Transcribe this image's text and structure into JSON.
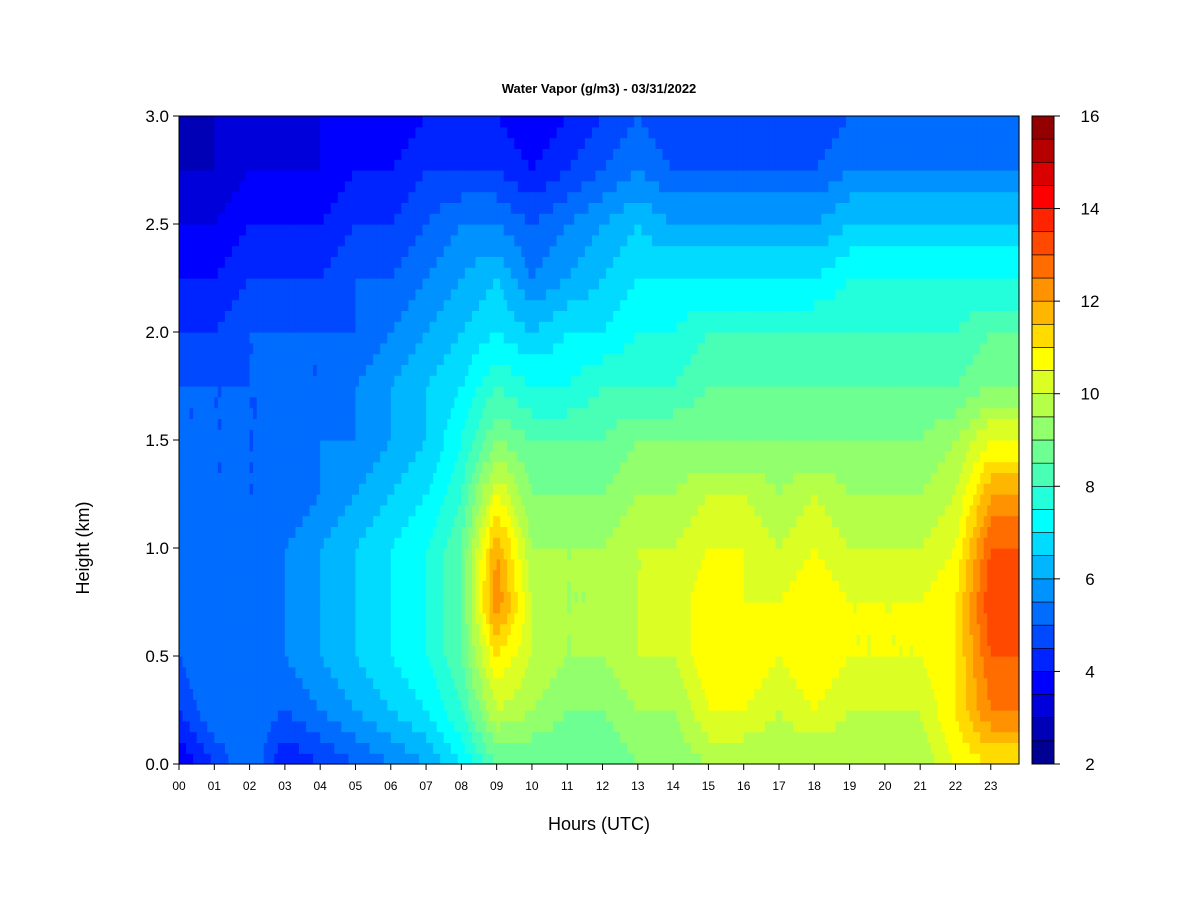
{
  "chart_data": {
    "type": "heatmap",
    "title": "Water Vapor (g/m3) - 03/31/2022",
    "xlabel": "Hours (UTC)",
    "ylabel": "Height (km)",
    "xlim": [
      0,
      23.8
    ],
    "ylim": [
      0.0,
      3.0
    ],
    "x_ticks": [
      {
        "value": 0,
        "label": "00"
      },
      {
        "value": 1,
        "label": "01"
      },
      {
        "value": 2,
        "label": "02"
      },
      {
        "value": 3,
        "label": "03"
      },
      {
        "value": 4,
        "label": "04"
      },
      {
        "value": 5,
        "label": "05"
      },
      {
        "value": 6,
        "label": "06"
      },
      {
        "value": 7,
        "label": "07"
      },
      {
        "value": 8,
        "label": "08"
      },
      {
        "value": 9,
        "label": "09"
      },
      {
        "value": 10,
        "label": "10"
      },
      {
        "value": 11,
        "label": "11"
      },
      {
        "value": 12,
        "label": "12"
      },
      {
        "value": 13,
        "label": "13"
      },
      {
        "value": 14,
        "label": "14"
      },
      {
        "value": 15,
        "label": "15"
      },
      {
        "value": 16,
        "label": "16"
      },
      {
        "value": 17,
        "label": "17"
      },
      {
        "value": 18,
        "label": "18"
      },
      {
        "value": 19,
        "label": "19"
      },
      {
        "value": 20,
        "label": "20"
      },
      {
        "value": 21,
        "label": "21"
      },
      {
        "value": 22,
        "label": "22"
      },
      {
        "value": 23,
        "label": "23"
      }
    ],
    "y_ticks": [
      {
        "value": 0.0,
        "label": "0.0"
      },
      {
        "value": 0.5,
        "label": "0.5"
      },
      {
        "value": 1.0,
        "label": "1.0"
      },
      {
        "value": 1.5,
        "label": "1.5"
      },
      {
        "value": 2.0,
        "label": "2.0"
      },
      {
        "value": 2.5,
        "label": "2.5"
      },
      {
        "value": 3.0,
        "label": "3.0"
      }
    ],
    "colorbar": {
      "min": 2,
      "max": 16,
      "levels": 28,
      "colormap": "jet",
      "ticks": [
        {
          "value": 2,
          "label": "2"
        },
        {
          "value": 4,
          "label": "4"
        },
        {
          "value": 6,
          "label": "6"
        },
        {
          "value": 8,
          "label": "8"
        },
        {
          "value": 10,
          "label": "10"
        },
        {
          "value": 12,
          "label": "12"
        },
        {
          "value": 14,
          "label": "14"
        },
        {
          "value": 16,
          "label": "16"
        }
      ]
    },
    "grid": false,
    "x_grid": [
      0,
      1,
      2,
      3,
      4,
      5,
      6,
      7,
      8,
      9,
      10,
      11,
      12,
      13,
      14,
      15,
      16,
      17,
      18,
      19,
      20,
      21,
      22,
      23
    ],
    "y_grid": [
      0.0,
      0.25,
      0.5,
      0.75,
      1.0,
      1.25,
      1.5,
      1.75,
      2.0,
      2.25,
      2.5,
      2.75,
      3.0
    ],
    "z_values": [
      [
        3.5,
        4.5,
        5.5,
        4.0,
        4.5,
        5.0,
        5.5,
        6.0,
        7.0,
        8.5,
        8.5,
        8.5,
        8.5,
        9.0,
        9.0,
        9.5,
        9.5,
        9.5,
        9.5,
        9.5,
        9.5,
        9.5,
        10.5,
        11.0
      ],
      [
        4.5,
        5.5,
        5.5,
        5.0,
        5.5,
        6.0,
        6.5,
        7.0,
        8.0,
        10.0,
        9.5,
        9.0,
        9.0,
        9.5,
        9.5,
        10.5,
        10.5,
        10.0,
        10.5,
        10.0,
        10.0,
        10.0,
        11.0,
        12.5
      ],
      [
        5.0,
        5.5,
        5.0,
        5.5,
        6.0,
        6.5,
        7.0,
        7.5,
        8.5,
        11.0,
        10.0,
        9.5,
        9.5,
        10.0,
        10.0,
        11.0,
        11.0,
        10.5,
        11.0,
        10.5,
        10.5,
        10.5,
        11.0,
        13.0
      ],
      [
        5.0,
        5.5,
        5.0,
        5.5,
        6.0,
        6.5,
        7.0,
        7.5,
        8.5,
        12.5,
        10.0,
        9.5,
        9.5,
        10.0,
        10.0,
        11.0,
        10.5,
        10.5,
        11.0,
        10.5,
        10.5,
        10.5,
        11.0,
        13.5
      ],
      [
        5.0,
        5.5,
        5.0,
        5.5,
        6.0,
        6.5,
        7.0,
        7.5,
        8.5,
        12.0,
        9.5,
        9.5,
        9.5,
        10.0,
        10.0,
        10.5,
        10.5,
        10.0,
        10.5,
        10.0,
        10.0,
        10.0,
        10.5,
        13.0
      ],
      [
        5.0,
        5.0,
        5.0,
        5.0,
        5.5,
        6.0,
        6.5,
        7.0,
        8.0,
        10.5,
        9.0,
        9.0,
        9.0,
        9.5,
        9.5,
        10.0,
        10.0,
        9.5,
        10.0,
        9.5,
        9.5,
        9.5,
        10.0,
        12.0
      ],
      [
        5.0,
        5.0,
        5.0,
        5.0,
        5.5,
        5.5,
        6.0,
        6.5,
        7.5,
        9.0,
        8.5,
        8.5,
        8.5,
        9.0,
        9.0,
        9.0,
        9.0,
        9.0,
        9.0,
        9.0,
        9.0,
        9.0,
        9.5,
        10.5
      ],
      [
        5.0,
        5.0,
        5.0,
        5.0,
        5.0,
        5.5,
        6.0,
        6.5,
        7.0,
        8.0,
        7.5,
        7.5,
        8.0,
        8.0,
        8.0,
        8.5,
        8.5,
        8.5,
        8.5,
        8.5,
        8.5,
        8.5,
        8.5,
        9.0
      ],
      [
        4.5,
        4.5,
        5.0,
        5.0,
        5.0,
        5.0,
        5.5,
        6.0,
        6.5,
        7.0,
        6.5,
        7.0,
        7.0,
        7.5,
        7.5,
        8.0,
        8.0,
        8.0,
        8.0,
        8.0,
        8.0,
        8.0,
        8.0,
        8.5
      ],
      [
        4.0,
        4.0,
        4.5,
        4.5,
        4.5,
        5.0,
        5.0,
        5.5,
        6.0,
        6.5,
        5.5,
        6.0,
        6.5,
        7.0,
        7.0,
        7.0,
        7.0,
        7.0,
        7.0,
        7.5,
        7.5,
        7.5,
        7.5,
        7.5
      ],
      [
        3.5,
        3.5,
        4.0,
        4.0,
        4.0,
        4.5,
        4.5,
        5.0,
        5.5,
        5.5,
        5.0,
        5.5,
        6.0,
        6.5,
        6.0,
        6.0,
        6.0,
        6.0,
        6.0,
        6.5,
        6.5,
        6.5,
        6.5,
        6.5
      ],
      [
        3.0,
        3.0,
        3.5,
        3.5,
        3.5,
        4.0,
        4.0,
        4.5,
        4.5,
        4.5,
        4.0,
        4.5,
        5.0,
        5.5,
        5.0,
        5.0,
        5.0,
        5.0,
        5.0,
        5.5,
        5.5,
        5.5,
        5.5,
        5.5
      ],
      [
        2.5,
        3.0,
        3.0,
        3.0,
        3.5,
        3.5,
        3.5,
        4.0,
        4.0,
        4.0,
        3.5,
        4.0,
        4.5,
        5.0,
        4.5,
        4.5,
        4.5,
        4.5,
        4.5,
        5.0,
        5.0,
        5.0,
        5.0,
        5.0
      ]
    ]
  }
}
